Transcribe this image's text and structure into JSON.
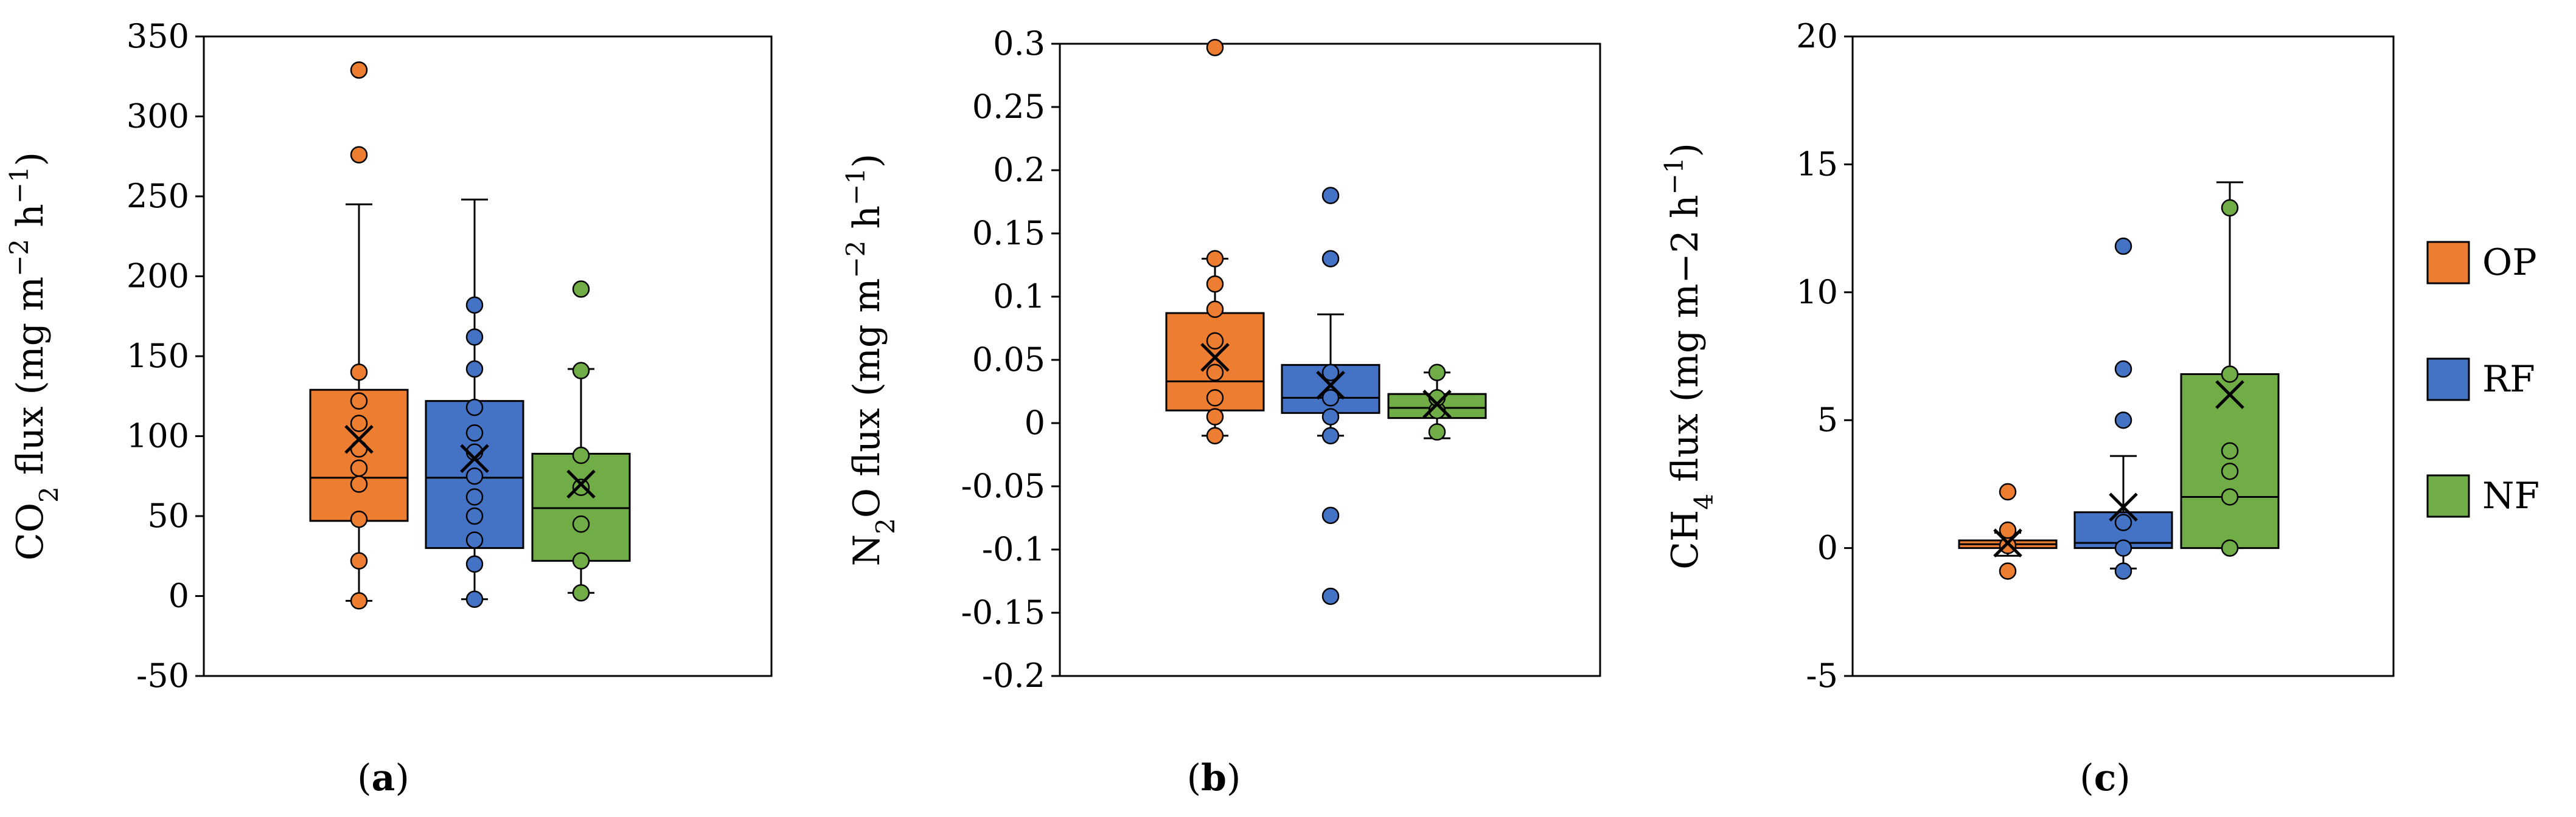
{
  "chart_data": [
    {
      "type": "box",
      "panel_label": "a",
      "ylabel": {
        "pre": "CO",
        "sub": "2",
        "mid": " flux (mg m",
        "sup1": "−2",
        "mid2": " h",
        "sup2": "−1",
        "post": ")"
      },
      "ylim": [
        -50,
        350
      ],
      "yticks": [
        "-50",
        "0",
        "50",
        "100",
        "150",
        "200",
        "250",
        "300",
        "350"
      ],
      "tick_values": [
        -50,
        0,
        50,
        100,
        150,
        200,
        250,
        300,
        350
      ],
      "series": [
        {
          "name": "OP",
          "q1": 47,
          "median": 74,
          "q3": 129,
          "mean": 98,
          "whisker_low": -3,
          "whisker_high": 245,
          "points": [
            -3,
            22,
            48,
            70,
            80,
            92,
            108,
            122,
            140,
            276,
            329
          ]
        },
        {
          "name": "RF",
          "q1": 30,
          "median": 74,
          "q3": 122,
          "mean": 86,
          "whisker_low": -2,
          "whisker_high": 248,
          "points": [
            -2,
            20,
            35,
            50,
            62,
            75,
            90,
            102,
            118,
            142,
            162,
            182
          ]
        },
        {
          "name": "NF",
          "q1": 22,
          "median": 55,
          "q3": 89,
          "mean": 70,
          "whisker_low": 2,
          "whisker_high": 142,
          "points": [
            2,
            22,
            45,
            68,
            88,
            141,
            192
          ]
        }
      ]
    },
    {
      "type": "box",
      "panel_label": "b",
      "ylabel": {
        "pre": "N",
        "sub": "2",
        "mid": "O flux  (mg m",
        "sup1": "−2",
        "mid2": " h",
        "sup2": "−1",
        "post": ")"
      },
      "ylim": [
        -0.2,
        0.3
      ],
      "yticks": [
        "-0.2",
        "-0.15",
        "-0.1",
        "-0.05",
        "0",
        "0.05",
        "0.1",
        "0.15",
        "0.2",
        "0.25",
        "0.3"
      ],
      "tick_values": [
        -0.2,
        -0.15,
        -0.1,
        -0.05,
        0,
        0.05,
        0.1,
        0.15,
        0.2,
        0.25,
        0.3
      ],
      "series": [
        {
          "name": "OP",
          "q1": 0.01,
          "median": 0.033,
          "q3": 0.087,
          "mean": 0.052,
          "whisker_low": -0.01,
          "whisker_high": 0.13,
          "points": [
            -0.01,
            0.005,
            0.02,
            0.04,
            0.065,
            0.09,
            0.11,
            0.13,
            0.297
          ]
        },
        {
          "name": "RF",
          "q1": 0.008,
          "median": 0.02,
          "q3": 0.046,
          "mean": 0.03,
          "whisker_low": -0.01,
          "whisker_high": 0.086,
          "points": [
            -0.137,
            -0.073,
            -0.01,
            0.005,
            0.02,
            0.04,
            0.13,
            0.18
          ]
        },
        {
          "name": "NF",
          "q1": 0.004,
          "median": 0.012,
          "q3": 0.023,
          "mean": 0.015,
          "whisker_low": -0.012,
          "whisker_high": 0.04,
          "points": [
            -0.007,
            0.01,
            0.02,
            0.04
          ]
        }
      ]
    },
    {
      "type": "box",
      "panel_label": "c",
      "ylabel": {
        "pre": "CH",
        "sub": "4",
        "mid": " flux (mg m−2  h",
        "sup1": "",
        "mid2": "",
        "sup2": "−1",
        "post": ")"
      },
      "ylim": [
        -5,
        20
      ],
      "yticks": [
        "-5",
        "0",
        "5",
        "10",
        "15",
        "20"
      ],
      "tick_values": [
        -5,
        0,
        5,
        10,
        15,
        20
      ],
      "series": [
        {
          "name": "OP",
          "q1": 0.0,
          "median": 0.15,
          "q3": 0.3,
          "mean": 0.2,
          "whisker_low": -0.3,
          "whisker_high": 0.6,
          "points": [
            -0.9,
            0.1,
            0.7,
            2.2
          ]
        },
        {
          "name": "RF",
          "q1": 0.0,
          "median": 0.2,
          "q3": 1.4,
          "mean": 1.6,
          "whisker_low": -0.8,
          "whisker_high": 3.6,
          "points": [
            -0.9,
            0.0,
            1.0,
            5.0,
            7.0,
            11.8
          ]
        },
        {
          "name": "NF",
          "q1": 0.0,
          "median": 2.0,
          "q3": 6.8,
          "mean": 6.0,
          "whisker_low": 0.0,
          "whisker_high": 14.3,
          "points": [
            0.0,
            2.0,
            3.0,
            3.8,
            6.8,
            13.3
          ]
        }
      ]
    }
  ],
  "legend": [
    {
      "label": "OP",
      "color": "#ED7D31"
    },
    {
      "label": "RF",
      "color": "#4472C4"
    },
    {
      "label": "NF",
      "color": "#70AD47"
    }
  ]
}
